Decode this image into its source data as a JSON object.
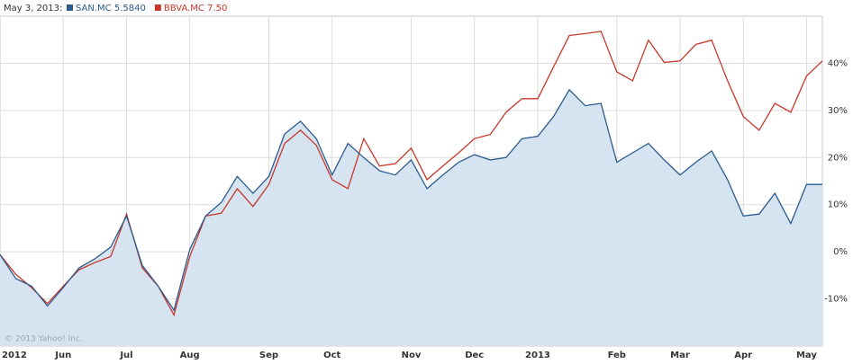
{
  "chart_data": {
    "type": "line",
    "legend_date": "May 3, 2013:",
    "watermark": "© 2013 Yahoo! Inc.",
    "categories": [
      "2012",
      null,
      null,
      null,
      "Jun",
      null,
      null,
      null,
      "Jul",
      null,
      null,
      null,
      "Aug",
      null,
      null,
      null,
      null,
      "Sep",
      null,
      null,
      null,
      "Oct",
      null,
      null,
      null,
      null,
      "Nov",
      null,
      null,
      null,
      "Dec",
      null,
      null,
      null,
      "2013",
      null,
      null,
      null,
      null,
      "Feb",
      null,
      null,
      null,
      "Mar",
      null,
      null,
      null,
      "Apr",
      null,
      null,
      null,
      "May",
      null
    ],
    "series": [
      {
        "name": "SAN.MC",
        "quote": "5.5840",
        "color": "#2b5b8f",
        "area": true,
        "area_color": "#d5e4f0",
        "values": [
          -0.6,
          -5.7,
          -7.3,
          -11.5,
          -7.6,
          -3.4,
          -1.5,
          1,
          7.6,
          -2.9,
          -7.3,
          -12.4,
          0.5,
          7.6,
          10.5,
          16,
          12.4,
          16,
          25,
          27.7,
          24,
          16.3,
          23,
          20,
          17.2,
          16.3,
          19.5,
          13.4,
          16.3,
          19,
          20.6,
          19.5,
          20,
          24,
          24.5,
          28.7,
          34.4,
          31,
          31.5,
          19,
          21,
          23,
          19.5,
          16.3,
          19,
          21.4,
          15.3,
          7.6,
          8,
          12.4,
          6,
          14.3,
          14.3
        ]
      },
      {
        "name": "BBVA.MC",
        "quote": "7.50",
        "color": "#c8372a",
        "area": false,
        "values": [
          -0.6,
          -4.8,
          -7.6,
          -11,
          -7.3,
          -3.8,
          -2.3,
          -1,
          8,
          -3.4,
          -7.3,
          -13.4,
          -1,
          7.6,
          8.2,
          13.4,
          9.6,
          14.3,
          23,
          25.8,
          22.6,
          15.3,
          13.4,
          24,
          18.2,
          18.7,
          22,
          15.3,
          18.2,
          21,
          24,
          24.9,
          29.6,
          32.5,
          32.5,
          39.2,
          45.9,
          46.3,
          46.8,
          38.2,
          36.3,
          44.9,
          40.2,
          40.5,
          44,
          44.9,
          36.3,
          28.7,
          25.8,
          31.5,
          29.6,
          37.3,
          40.5
        ]
      }
    ],
    "ylim": [
      -20,
      50
    ],
    "yticks": [
      {
        "value": -10,
        "label": "-10%"
      },
      {
        "value": 0,
        "label": "0%"
      },
      {
        "value": 10,
        "label": "10%"
      },
      {
        "value": 20,
        "label": "20%"
      },
      {
        "value": 30,
        "label": "30%"
      },
      {
        "value": 40,
        "label": "40%"
      }
    ],
    "grid": true
  }
}
